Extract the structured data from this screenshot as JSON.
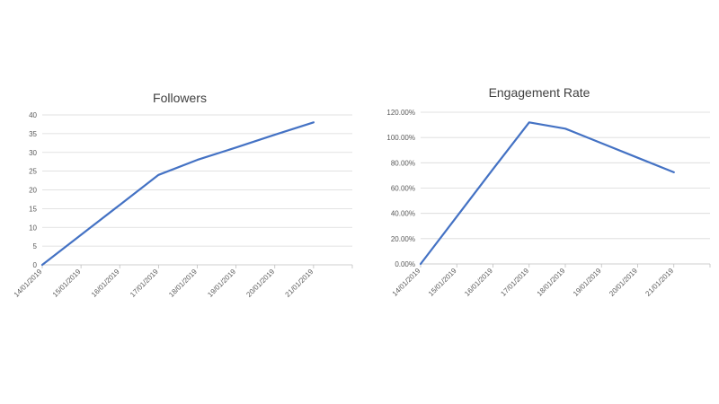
{
  "chart_data": [
    {
      "type": "line",
      "title": "Followers",
      "xlabel": "",
      "ylabel": "",
      "categories": [
        "14/01/2019",
        "15/01/2019",
        "16/01/2019",
        "17/01/2019",
        "18/01/2019",
        "19/01/2019",
        "20/01/2019",
        "21/01/2019"
      ],
      "series": [
        {
          "values": [
            0,
            8,
            16,
            24,
            28,
            31.3,
            34.7,
            38
          ]
        }
      ],
      "ylim": [
        0,
        40
      ],
      "yticks": [
        0,
        5,
        10,
        15,
        20,
        25,
        30,
        35,
        40
      ],
      "ytick_labels": [
        "0",
        "5",
        "10",
        "15",
        "20",
        "25",
        "30",
        "35",
        "40"
      ],
      "grid": true,
      "legend": "none",
      "color": "#4472c4"
    },
    {
      "type": "line",
      "title": "Engagement Rate",
      "xlabel": "",
      "ylabel": "",
      "categories": [
        "14/01/2019",
        "15/01/2019",
        "16/01/2019",
        "17/01/2019",
        "18/01/2019",
        "19/01/2019",
        "20/01/2019",
        "21/01/2019"
      ],
      "series": [
        {
          "values": [
            0,
            37.5,
            75,
            112,
            107,
            95.5,
            84,
            72.5
          ]
        }
      ],
      "ylim": [
        0,
        120
      ],
      "yticks": [
        0,
        20,
        40,
        60,
        80,
        100,
        120
      ],
      "ytick_labels": [
        "0.00%",
        "20.00%",
        "40.00%",
        "60.00%",
        "80.00%",
        "100.00%",
        "120.00%"
      ],
      "grid": true,
      "legend": "none",
      "color": "#4472c4"
    }
  ]
}
